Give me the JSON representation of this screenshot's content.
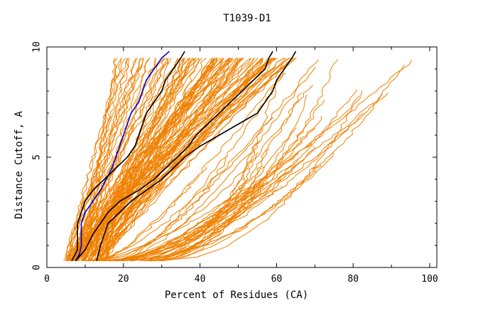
{
  "chart_data": {
    "type": "line",
    "title": "T1039-D1",
    "xlabel": "Percent of Residues (CA)",
    "ylabel": "Distance Cutoff, A",
    "xlim": [
      0,
      100
    ],
    "ylim": [
      0,
      10
    ],
    "x_ticks": [
      "0",
      "20",
      "40",
      "60",
      "80",
      "100"
    ],
    "y_ticks": [
      "0",
      "5",
      "10"
    ],
    "grid": false,
    "colors": {
      "background_models": "#f08000",
      "highlight_black": "#000000",
      "highlight_blue": "#0000cc"
    },
    "background_model_count": 150,
    "highlighted_series": [
      {
        "color": "#0000cc",
        "points": [
          [
            7.5,
            0.3
          ],
          [
            8.5,
            0.6
          ],
          [
            9,
            1
          ],
          [
            9,
            2
          ],
          [
            10,
            2.5
          ],
          [
            12,
            3
          ],
          [
            14,
            3.5
          ],
          [
            15.5,
            4
          ],
          [
            17,
            4.5
          ],
          [
            18,
            5
          ],
          [
            19,
            5.5
          ],
          [
            20,
            6
          ],
          [
            21,
            6.5
          ],
          [
            22,
            7
          ],
          [
            24,
            7.5
          ],
          [
            25,
            8
          ],
          [
            26,
            8.5
          ],
          [
            28,
            9
          ],
          [
            30,
            9.5
          ],
          [
            32,
            9.8
          ]
        ]
      },
      {
        "color": "#000000",
        "points": [
          [
            6.5,
            0.3
          ],
          [
            8,
            0.8
          ],
          [
            8,
            2
          ],
          [
            9,
            2.5
          ],
          [
            10,
            3
          ],
          [
            12,
            3.5
          ],
          [
            15,
            4
          ],
          [
            18,
            4.5
          ],
          [
            21,
            5
          ],
          [
            23,
            5.5
          ],
          [
            24,
            6
          ],
          [
            25,
            6.5
          ],
          [
            26,
            7
          ],
          [
            28,
            7.5
          ],
          [
            30,
            8
          ],
          [
            31,
            8.5
          ],
          [
            33,
            9
          ],
          [
            35,
            9.5
          ],
          [
            36,
            9.8
          ]
        ]
      },
      {
        "color": "#000000",
        "points": [
          [
            7.5,
            0.3
          ],
          [
            10,
            0.8
          ],
          [
            12,
            1.5
          ],
          [
            14,
            2
          ],
          [
            16,
            2.5
          ],
          [
            19,
            3
          ],
          [
            24,
            3.5
          ],
          [
            28,
            4
          ],
          [
            31,
            4.5
          ],
          [
            34,
            5
          ],
          [
            37,
            5.5
          ],
          [
            39,
            6
          ],
          [
            42,
            6.5
          ],
          [
            45,
            7
          ],
          [
            48,
            7.5
          ],
          [
            51,
            8
          ],
          [
            54,
            8.5
          ],
          [
            57,
            9
          ],
          [
            58,
            9.5
          ],
          [
            59,
            9.8
          ]
        ]
      },
      {
        "color": "#000000",
        "points": [
          [
            13,
            0.3
          ],
          [
            14,
            1
          ],
          [
            15,
            1.5
          ],
          [
            16,
            2
          ],
          [
            19,
            2.5
          ],
          [
            22,
            3
          ],
          [
            26,
            3.5
          ],
          [
            30,
            4
          ],
          [
            33,
            4.5
          ],
          [
            36,
            5
          ],
          [
            40,
            5.5
          ],
          [
            45,
            6
          ],
          [
            50,
            6.5
          ],
          [
            55,
            7
          ],
          [
            57,
            7.5
          ],
          [
            59,
            8
          ],
          [
            60,
            8.5
          ],
          [
            62,
            9
          ],
          [
            64,
            9.5
          ],
          [
            65,
            9.8
          ]
        ]
      }
    ]
  }
}
